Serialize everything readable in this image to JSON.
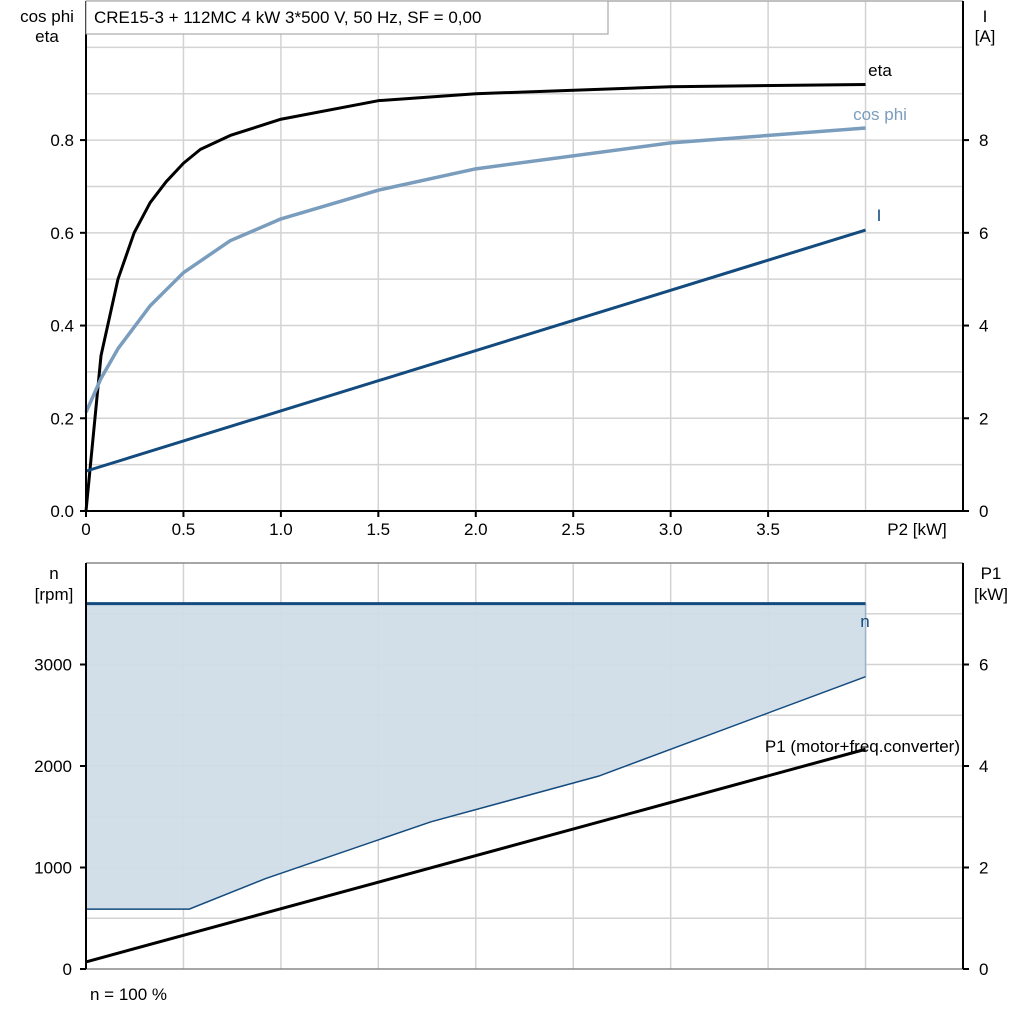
{
  "title": "CRE15-3 + 112MC   4 kW   3*500 V, 50 Hz, SF = 0,00",
  "footer": "n = 100 %",
  "colors": {
    "eta": "#000000",
    "cos_phi": "#7a9dbd",
    "I": "#134b7f",
    "n": "#134b7f",
    "n_fill": "#d0dce7",
    "P1": "#000000",
    "grid": "#d3d3d3"
  },
  "chart_data": [
    {
      "type": "line",
      "xlabel": "P2 [kW]",
      "ylabel_left": [
        "cos phi",
        "eta"
      ],
      "ylabel_right": [
        "I",
        "[A]"
      ],
      "xlim": [
        0,
        4.5
      ],
      "ylim_left": [
        0,
        1.1
      ],
      "ylim_right": [
        0,
        11
      ],
      "x_ticks": [
        "0",
        "0.5",
        "1.0",
        "1.5",
        "2.0",
        "2.5",
        "3.0",
        "3.5"
      ],
      "y_ticks_left": [
        "0.0",
        "0.2",
        "0.4",
        "0.6",
        "0.8"
      ],
      "y_ticks_right": [
        "0",
        "2",
        "4",
        "6",
        "8"
      ],
      "grid": true,
      "series": [
        {
          "name": "eta",
          "axis": "left",
          "x": [
            0,
            0.077,
            0.164,
            0.247,
            0.329,
            0.411,
            0.5,
            0.587,
            0.74,
            1.0,
            1.5,
            2.0,
            3.0,
            4.0
          ],
          "y": [
            0,
            0.335,
            0.5,
            0.6,
            0.665,
            0.71,
            0.75,
            0.78,
            0.81,
            0.845,
            0.885,
            0.9,
            0.915,
            0.92
          ]
        },
        {
          "name": "cos phi",
          "axis": "left",
          "x": [
            0,
            0.077,
            0.164,
            0.33,
            0.5,
            0.74,
            1.0,
            1.5,
            2.0,
            3.0,
            4.0
          ],
          "y": [
            0.213,
            0.286,
            0.35,
            0.443,
            0.514,
            0.583,
            0.63,
            0.692,
            0.738,
            0.794,
            0.826
          ]
        },
        {
          "name": "I",
          "axis": "right",
          "x": [
            0,
            4.0
          ],
          "y": [
            0.86,
            6.06
          ]
        }
      ]
    },
    {
      "type": "area",
      "ylabel_left": [
        "n",
        "[rpm]"
      ],
      "ylabel_right": [
        "P1",
        "[kW]"
      ],
      "xlim": [
        0,
        4.5
      ],
      "ylim_left": [
        0,
        4000
      ],
      "ylim_right": [
        0,
        8
      ],
      "y_ticks_left": [
        "0",
        "1000",
        "2000",
        "3000"
      ],
      "y_ticks_right": [
        "0",
        "2",
        "4",
        "6"
      ],
      "grid": true,
      "series": [
        {
          "name": "n",
          "axis": "left",
          "x": [
            0,
            4.0
          ],
          "y_max": [
            3600,
            3600
          ],
          "x_min": [
            0,
            0.53,
            0.92,
            1.77,
            2.63,
            4.0
          ],
          "y_min": [
            590,
            590,
            890,
            1450,
            1900,
            2880
          ]
        },
        {
          "name": "P1 (motor+freq.converter)",
          "axis": "right",
          "x": [
            0,
            4.0
          ],
          "y": [
            0.14,
            4.33
          ]
        }
      ]
    }
  ]
}
